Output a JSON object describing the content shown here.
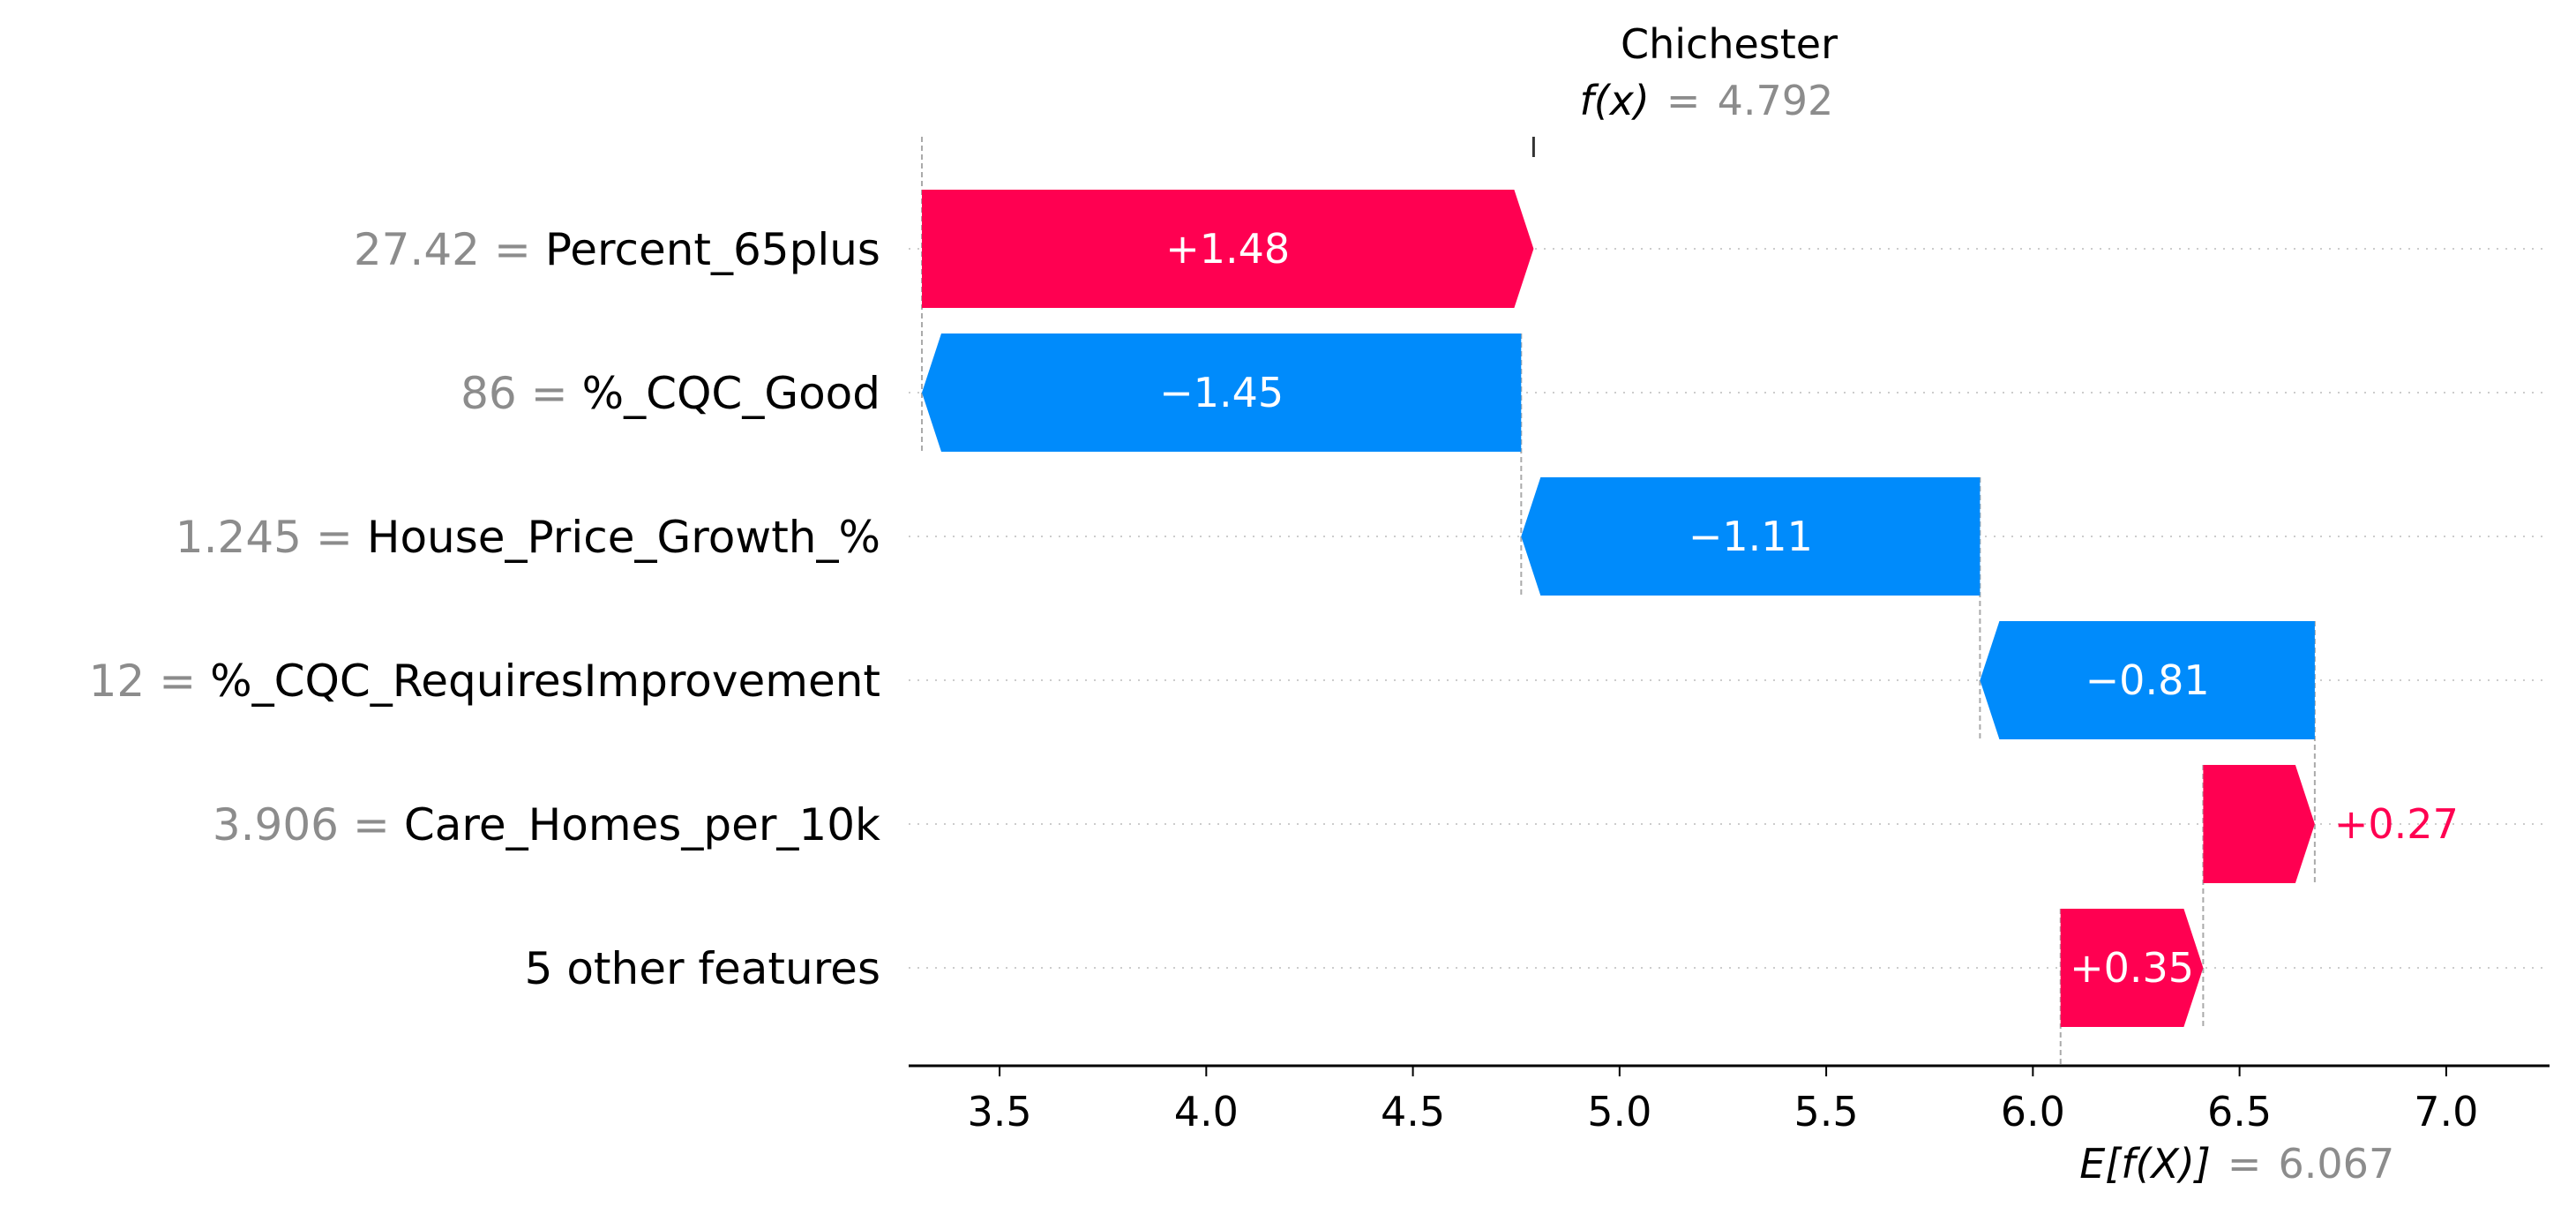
{
  "chart_data": {
    "type": "waterfall",
    "title": "Chichester",
    "output": {
      "label": "f(x)",
      "equals": "=",
      "value": 4.792,
      "display": "4.792"
    },
    "base": {
      "label": "E[f(X)]",
      "equals": "=",
      "value": 6.067,
      "display": "6.067"
    },
    "xlim": [
      3.28,
      7.25
    ],
    "x_ticks": [
      3.5,
      4.0,
      4.5,
      5.0,
      5.5,
      6.0,
      6.5,
      7.0
    ],
    "x_tick_labels": [
      "3.5",
      "4.0",
      "4.5",
      "5.0",
      "5.5",
      "6.0",
      "6.5",
      "7.0"
    ],
    "features": [
      {
        "value": "27.42",
        "name": "Percent_65plus",
        "separator": "=",
        "contribution": 1.48,
        "label": "+1.48",
        "start": 3.312,
        "end": 4.792,
        "label_position": "inside"
      },
      {
        "value": "86",
        "name": "%_CQC_Good",
        "separator": "=",
        "contribution": -1.45,
        "label": "−1.45",
        "start": 4.762,
        "end": 3.312,
        "label_position": "inside"
      },
      {
        "value": "1.245",
        "name": "House_Price_Growth_%",
        "separator": "=",
        "contribution": -1.11,
        "label": "−1.11",
        "start": 5.872,
        "end": 4.762,
        "label_position": "inside"
      },
      {
        "value": "12",
        "name": "%_CQC_RequiresImprovement",
        "separator": "=",
        "contribution": -0.81,
        "label": "−0.81",
        "start": 6.682,
        "end": 5.872,
        "label_position": "inside"
      },
      {
        "value": "3.906",
        "name": "Care_Homes_per_10k",
        "separator": "=",
        "contribution": 0.27,
        "label": "+0.27",
        "start": 6.412,
        "end": 6.682,
        "label_position": "outside"
      },
      {
        "value": "",
        "name": "5 other features",
        "separator": "",
        "contribution": 0.35,
        "label": "+0.35",
        "start": 6.067,
        "end": 6.412,
        "label_position": "inside"
      }
    ],
    "colors": {
      "positive": "#ff0051",
      "negative": "#008bfb",
      "grid": "#cccccc",
      "axis": "#000000",
      "muted": "#8c8c8c"
    }
  }
}
